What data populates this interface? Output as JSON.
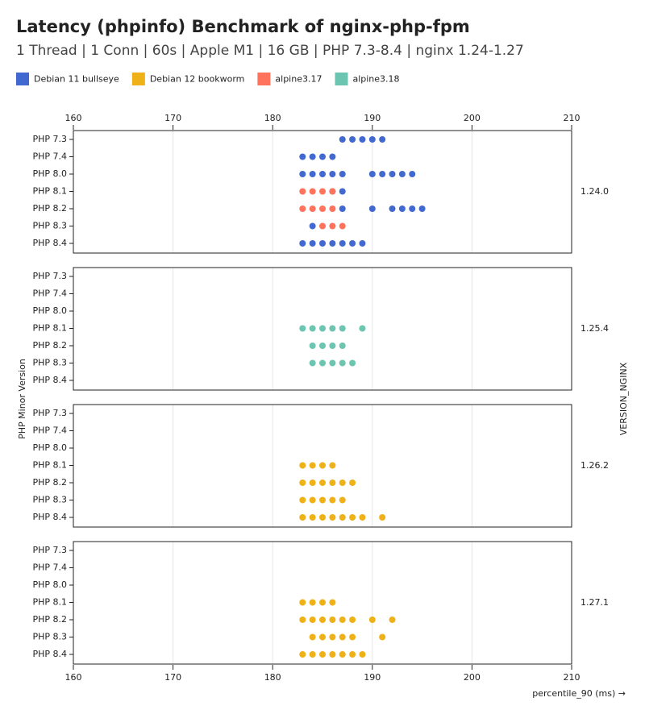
{
  "chart_data": {
    "type": "faceted-dot",
    "title": "Latency (phpinfo) Benchmark of nginx-php-fpm",
    "subtitle": "1 Thread | 1 Conn | 60s | Apple M1 | 16 GB | PHP 7.3-8.4 | nginx 1.24-1.27",
    "x_label": "percentile_90 (ms) →",
    "y_label": "PHP Minor Version",
    "facet_label": "VERSION_NGINX",
    "facets": [
      "1.24.0",
      "1.25.4",
      "1.26.2",
      "1.27.1"
    ],
    "categories": [
      "PHP 7.3",
      "PHP 7.4",
      "PHP 8.0",
      "PHP 8.1",
      "PHP 8.2",
      "PHP 8.3",
      "PHP 8.4"
    ],
    "xlim": [
      160,
      210
    ],
    "xticks": [
      160,
      170,
      180,
      190,
      200,
      210
    ],
    "grid": true,
    "series": [
      {
        "name": "Debian 11 bullseye",
        "color": "#4269d0",
        "x": [
          [
            [
              187,
              188,
              189,
              190,
              191
            ],
            [
              183,
              184,
              185,
              186
            ],
            [
              183,
              184,
              185,
              186,
              187,
              190,
              191,
              192,
              193,
              194
            ],
            [
              186,
              187
            ],
            [
              187,
              190,
              192,
              193,
              194,
              195
            ],
            [
              184
            ],
            [
              183,
              184,
              185,
              186,
              187,
              188,
              189
            ]
          ],
          [
            [],
            [],
            [],
            [],
            [],
            [],
            []
          ],
          [
            [],
            [],
            [],
            [],
            [],
            [],
            []
          ],
          [
            [],
            [],
            [],
            [],
            [],
            [],
            []
          ]
        ]
      },
      {
        "name": "Debian 12 bookworm",
        "color": "#efb118",
        "x": [
          [
            [],
            [],
            [],
            [],
            [],
            [],
            []
          ],
          [
            [],
            [],
            [],
            [],
            [],
            [],
            []
          ],
          [
            [],
            [],
            [],
            [
              183,
              184,
              185,
              186
            ],
            [
              183,
              184,
              185,
              186,
              187,
              188
            ],
            [
              183,
              184,
              185,
              186,
              187
            ],
            [
              183,
              184,
              185,
              186,
              187,
              188,
              189,
              191
            ]
          ],
          [
            [],
            [],
            [],
            [
              183,
              184,
              185,
              186
            ],
            [
              183,
              184,
              185,
              186,
              187,
              188,
              190,
              192
            ],
            [
              184,
              185,
              186,
              187,
              188,
              191
            ],
            [
              183,
              184,
              185,
              186,
              187,
              188,
              189
            ]
          ]
        ]
      },
      {
        "name": "alpine3.17",
        "color": "#ff725c",
        "x": [
          [
            [],
            [],
            [],
            [
              183,
              184,
              185,
              186
            ],
            [
              183,
              184,
              185,
              186
            ],
            [
              185,
              186,
              187
            ],
            []
          ],
          [
            [],
            [],
            [],
            [],
            [],
            [],
            []
          ],
          [
            [],
            [],
            [],
            [],
            [],
            [],
            []
          ],
          [
            [],
            [],
            [],
            [],
            [],
            [],
            []
          ]
        ]
      },
      {
        "name": "alpine3.18",
        "color": "#6cc5b0",
        "x": [
          [
            [],
            [],
            [],
            [],
            [],
            [],
            []
          ],
          [
            [],
            [],
            [],
            [
              183,
              184,
              185,
              186,
              187,
              189
            ],
            [
              184,
              185,
              186,
              187
            ],
            [
              184,
              185,
              186,
              187,
              188
            ],
            []
          ],
          [
            [],
            [],
            [],
            [],
            [],
            [],
            []
          ],
          [
            [],
            [],
            [],
            [],
            [],
            [],
            []
          ]
        ]
      }
    ]
  }
}
